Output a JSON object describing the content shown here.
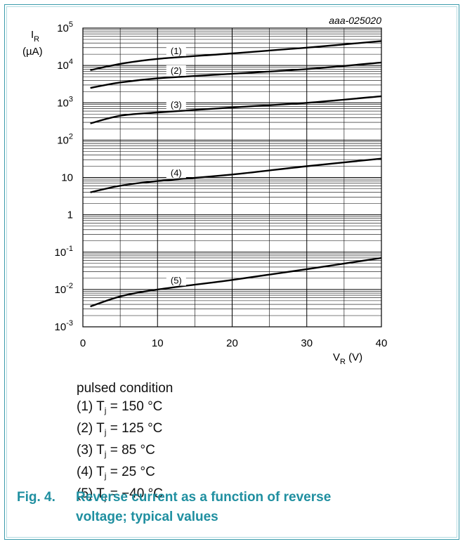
{
  "reference_id": "aaa-025020",
  "chart_data": {
    "type": "line",
    "y_scale": "log",
    "ylabel_main": "I",
    "ylabel_sub": "R",
    "ylabel_unit": "(µA)",
    "xlabel_main": "V",
    "xlabel_sub": "R",
    "xlabel_unit": " (V)",
    "xlim": [
      0,
      40
    ],
    "ylim": [
      0.001,
      100000
    ],
    "x_ticks": [
      "0",
      "10",
      "20",
      "30",
      "40"
    ],
    "y_ticks": [
      {
        "base": "10",
        "exp": "5"
      },
      {
        "base": "10",
        "exp": "4"
      },
      {
        "base": "10",
        "exp": "3"
      },
      {
        "base": "10",
        "exp": "2"
      },
      {
        "base": "10",
        "exp": ""
      },
      {
        "base": "1",
        "exp": ""
      },
      {
        "base": "10",
        "exp": "-1"
      },
      {
        "base": "10",
        "exp": "-2"
      },
      {
        "base": "10",
        "exp": "-3"
      }
    ],
    "grid": true,
    "series": [
      {
        "name": "(1)",
        "x": [
          1,
          5,
          10,
          20,
          30,
          40
        ],
        "y": [
          7500,
          11000,
          15000,
          21000,
          30000,
          45000
        ]
      },
      {
        "name": "(2)",
        "x": [
          1,
          5,
          10,
          20,
          30,
          40
        ],
        "y": [
          2500,
          3500,
          4500,
          6000,
          8000,
          12000
        ]
      },
      {
        "name": "(3)",
        "x": [
          1,
          5,
          10,
          20,
          30,
          40
        ],
        "y": [
          280,
          450,
          550,
          750,
          1000,
          1500
        ]
      },
      {
        "name": "(4)",
        "x": [
          1,
          5,
          10,
          20,
          30,
          40
        ],
        "y": [
          4,
          6,
          8,
          12,
          20,
          32
        ]
      },
      {
        "name": "(5)",
        "x": [
          1,
          5,
          10,
          20,
          30,
          40
        ],
        "y": [
          0.0035,
          0.0065,
          0.01,
          0.018,
          0.035,
          0.07
        ]
      }
    ]
  },
  "legend": {
    "heading": "pulsed condition",
    "items": [
      {
        "prefix": "(1) T",
        "sub": "j",
        "suffix": " = 150 °C"
      },
      {
        "prefix": "(2) T",
        "sub": "j",
        "suffix": " = 125 °C"
      },
      {
        "prefix": "(3) T",
        "sub": "j",
        "suffix": " = 85 °C"
      },
      {
        "prefix": "(4) T",
        "sub": "j",
        "suffix": " = 25 °C"
      },
      {
        "prefix": "(5) T",
        "sub": "j",
        "suffix": " = −40 °C"
      }
    ]
  },
  "caption": {
    "number": "Fig. 4.",
    "line1": "Reverse current as a function of reverse",
    "line2": "voltage; typical values"
  },
  "colors": {
    "frame": "#3c9cac",
    "caption": "#1f8fa0",
    "grid": "#000000",
    "curve": "#000000"
  }
}
